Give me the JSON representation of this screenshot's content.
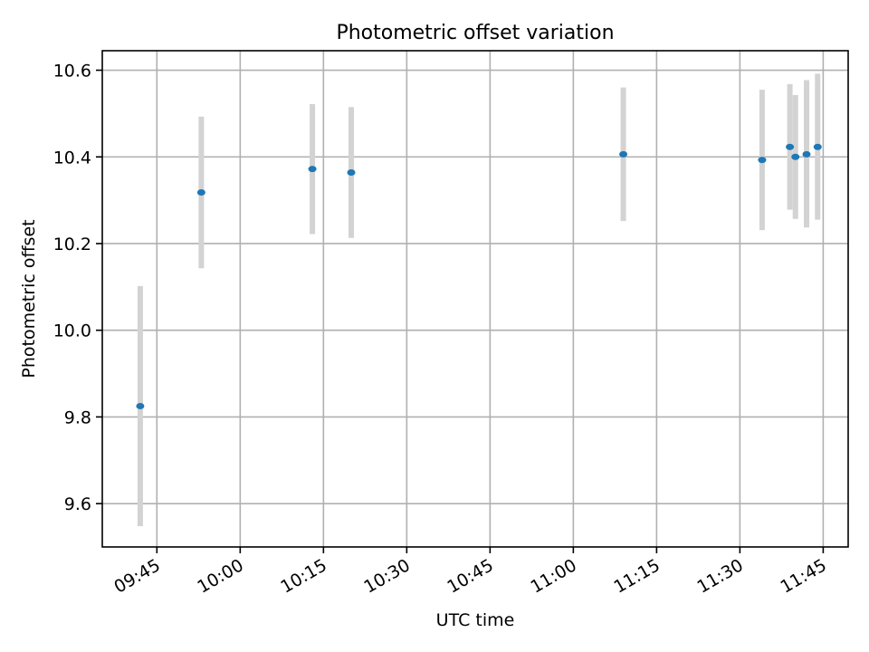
{
  "chart_data": {
    "type": "scatter",
    "title": "Photometric offset variation",
    "xlabel": "UTC time",
    "ylabel": "Photometric offset",
    "xlim": [
      "09:35:10",
      "11:49:30"
    ],
    "ylim": [
      9.5,
      10.645
    ],
    "x_ticks": [
      "09:45",
      "10:00",
      "10:15",
      "10:30",
      "10:45",
      "11:00",
      "11:15",
      "11:30",
      "11:45"
    ],
    "y_ticks": [
      9.6,
      9.8,
      10.0,
      10.2,
      10.4,
      10.6
    ],
    "grid": true,
    "colors": {
      "point": "#1f77b4",
      "errorbar": "#d3d3d3"
    },
    "series": [
      {
        "points": [
          {
            "time": "09:42",
            "y": 9.825,
            "low": 9.548,
            "high": 10.102
          },
          {
            "time": "09:53",
            "y": 10.318,
            "low": 10.143,
            "high": 10.493
          },
          {
            "time": "10:13",
            "y": 10.372,
            "low": 10.222,
            "high": 10.522
          },
          {
            "time": "10:20",
            "y": 10.364,
            "low": 10.213,
            "high": 10.515
          },
          {
            "time": "11:09",
            "y": 10.406,
            "low": 10.252,
            "high": 10.56
          },
          {
            "time": "11:34",
            "y": 10.393,
            "low": 10.231,
            "high": 10.555
          },
          {
            "time": "11:39",
            "y": 10.423,
            "low": 10.278,
            "high": 10.568
          },
          {
            "time": "11:40",
            "y": 10.4,
            "low": 10.257,
            "high": 10.543
          },
          {
            "time": "11:42",
            "y": 10.406,
            "low": 10.237,
            "high": 10.577
          },
          {
            "time": "11:44",
            "y": 10.423,
            "low": 10.255,
            "high": 10.592
          }
        ]
      }
    ]
  }
}
